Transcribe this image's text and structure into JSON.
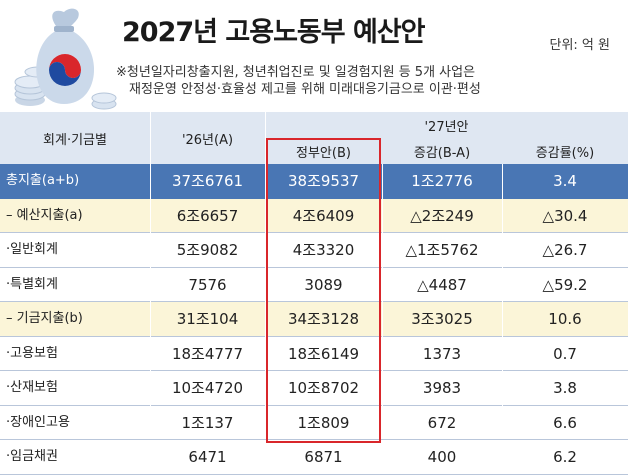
{
  "header": {
    "title": "2027년 고용노동부 예산안",
    "unit": "단위: 억 원",
    "note_line1": "※청년일자리창출지원, 청년취업진로 및 일경험지원 등 5개 사업은",
    "note_line2": "재정운영 안정성·효율성 제고를 위해 미래대응기금으로 이관·편성"
  },
  "table": {
    "col_label": "회계·기금별",
    "col_2026": "'26년(A)",
    "col_2027_group": "'27년안",
    "col_gov": "정부안(B)",
    "col_diff": "증감(B-A)",
    "col_rate": "증감률(%)",
    "rows": [
      {
        "label": "총지출(a+b)",
        "a": "37조6761",
        "b": "38조9537",
        "diff": "1조2776",
        "rate": "3.4",
        "style": "total"
      },
      {
        "label": "– 예산지출(a)",
        "a": "6조6657",
        "b": "4조6409",
        "diff": "△2조249",
        "rate": "△30.4",
        "style": "sub"
      },
      {
        "label": "·일반회계",
        "a": "5조9082",
        "b": "4조3320",
        "diff": "△1조5762",
        "rate": "△26.7",
        "style": "plain"
      },
      {
        "label": "·특별회계",
        "a": "7576",
        "b": "3089",
        "diff": "△4487",
        "rate": "△59.2",
        "style": "plain"
      },
      {
        "label": "– 기금지출(b)",
        "a": "31조104",
        "b": "34조3128",
        "diff": "3조3025",
        "rate": "10.6",
        "style": "sub"
      },
      {
        "label": "·고용보험",
        "a": "18조4777",
        "b": "18조6149",
        "diff": "1373",
        "rate": "0.7",
        "style": "plain"
      },
      {
        "label": "·산재보험",
        "a": "10조4720",
        "b": "10조8702",
        "diff": "3983",
        "rate": "3.8",
        "style": "plain"
      },
      {
        "label": "·장애인고용",
        "a": "1조137",
        "b": "1조809",
        "diff": "672",
        "rate": "6.6",
        "style": "plain"
      },
      {
        "label": "·임금채권",
        "a": "6471",
        "b": "6871",
        "diff": "400",
        "rate": "6.2",
        "style": "plain"
      }
    ]
  },
  "colors": {
    "header_bg": "#dfe7f2",
    "total_bg": "#4976b4",
    "sub_bg": "#fbf5d8",
    "highlight": "#d9262b"
  },
  "icons": [
    "money-bag-icon",
    "coin-stack-icon",
    "taegeuk-emblem-icon"
  ]
}
